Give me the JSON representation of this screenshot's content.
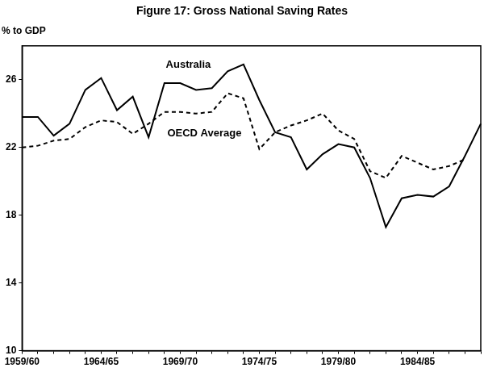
{
  "chart_data": {
    "type": "line",
    "title": "Figure 17: Gross National Saving Rates",
    "ylabel": "% to GDP",
    "categories": [
      "1959/60",
      null,
      null,
      null,
      null,
      "1964/65",
      null,
      null,
      null,
      null,
      "1969/70",
      null,
      null,
      null,
      null,
      "1974/75",
      null,
      null,
      null,
      null,
      "1979/80",
      null,
      null,
      null,
      null,
      "1984/85",
      null,
      null,
      null,
      null
    ],
    "series": [
      {
        "name": "Australia",
        "color": "#000000",
        "line_style": "solid",
        "marker": "none",
        "values": [
          23.8,
          23.8,
          22.7,
          23.4,
          25.4,
          26.1,
          24.2,
          25.0,
          22.6,
          25.8,
          25.8,
          25.4,
          25.5,
          26.5,
          26.9,
          24.8,
          22.9,
          22.6,
          20.7,
          21.6,
          22.2,
          22.0,
          20.2,
          17.3,
          19.0,
          19.2,
          19.1,
          19.7,
          21.5,
          23.4
        ]
      },
      {
        "name": "OECD Average",
        "color": "#000000",
        "line_style": "dashed",
        "marker": "none",
        "values": [
          22.0,
          22.1,
          22.4,
          22.5,
          23.2,
          23.6,
          23.5,
          22.8,
          23.4,
          24.1,
          24.1,
          24.0,
          24.1,
          25.2,
          24.9,
          21.9,
          22.9,
          23.3,
          23.6,
          24.0,
          23.0,
          22.5,
          20.6,
          20.2,
          21.5,
          21.1,
          20.7,
          20.9,
          21.3,
          null
        ]
      }
    ],
    "ylim": [
      10,
      28
    ],
    "yticks": [
      10,
      14,
      18,
      22,
      26
    ],
    "grid": false
  }
}
